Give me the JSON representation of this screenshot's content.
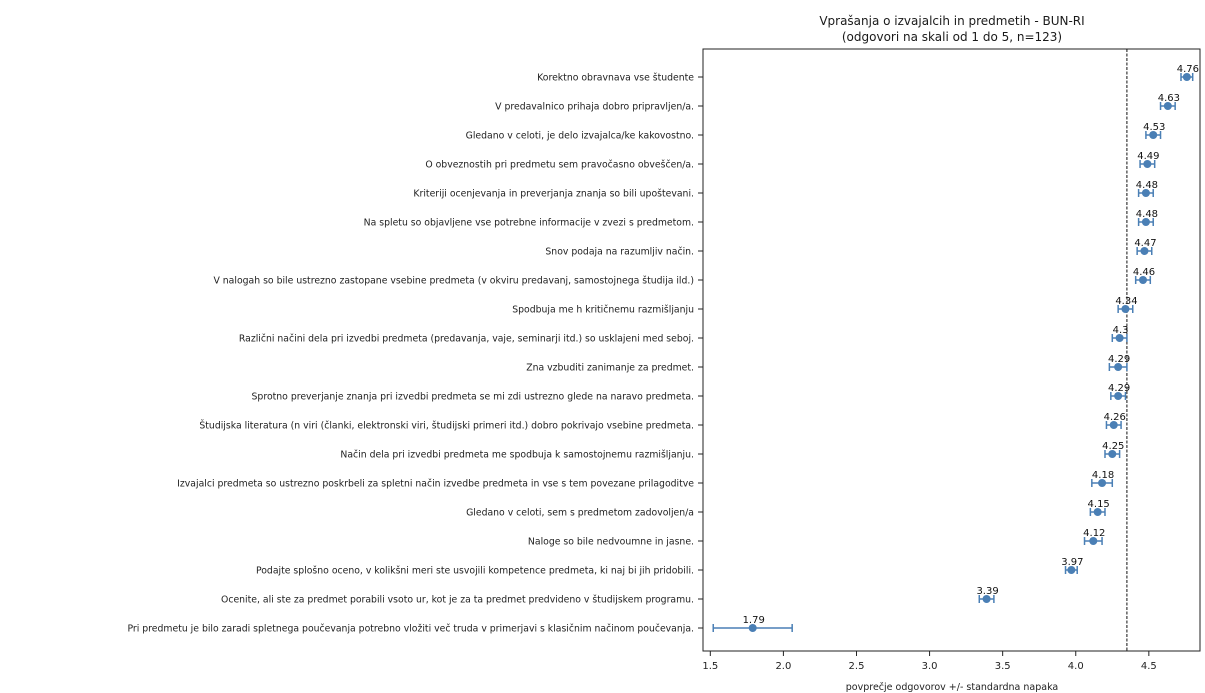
{
  "chart_data": {
    "type": "scatter",
    "title": "Vprašanja o izvajalcih in predmetih - BUN-RI",
    "subtitle": "(odgovori na skali od 1 do 5, n=123)",
    "xlabel": "povprečje odgovorov +/- standardna napaka",
    "xlim": [
      1.45,
      4.85
    ],
    "xticks": [
      "1.5",
      "2.0",
      "2.5",
      "3.0",
      "3.5",
      "4.0",
      "4.5"
    ],
    "xtick_values": [
      1.5,
      2.0,
      2.5,
      3.0,
      3.5,
      4.0,
      4.5
    ],
    "reference_line": 4.35,
    "marker_color": "#4a7fb5",
    "items": [
      {
        "label": "Korektno obravnava vse študente",
        "mean": 4.76,
        "value_label": "4.76",
        "err": 0.04
      },
      {
        "label": "V predavalnico prihaja dobro pripravljen/a.",
        "mean": 4.63,
        "value_label": "4.63",
        "err": 0.05
      },
      {
        "label": "Gledano v celoti, je delo izvajalca/ke kakovostno.",
        "mean": 4.53,
        "value_label": "4.53",
        "err": 0.05
      },
      {
        "label": "O obveznostih pri predmetu sem pravočasno obveščen/a.",
        "mean": 4.49,
        "value_label": "4.49",
        "err": 0.05
      },
      {
        "label": "Kriteriji ocenjevanja in preverjanja znanja so bili upoštevani.",
        "mean": 4.48,
        "value_label": "4.48",
        "err": 0.05
      },
      {
        "label": "Na spletu so objavljene vse potrebne informacije v zvezi s predmetom.",
        "mean": 4.48,
        "value_label": "4.48",
        "err": 0.05
      },
      {
        "label": "Snov podaja na razumljiv način.",
        "mean": 4.47,
        "value_label": "4.47",
        "err": 0.05
      },
      {
        "label": "V nalogah so bile ustrezno zastopane vsebine predmeta (v okviru predavanj, samostojnega študija ild.)",
        "mean": 4.46,
        "value_label": "4.46",
        "err": 0.05
      },
      {
        "label": "Spodbuja me h kritičnemu razmišljanju",
        "mean": 4.34,
        "value_label": "4.34",
        "err": 0.05
      },
      {
        "label": "Različni načini dela pri izvedbi predmeta (predavanja, vaje, seminarji itd.) so usklajeni med seboj.",
        "mean": 4.3,
        "value_label": "4.3",
        "err": 0.05
      },
      {
        "label": "Zna vzbuditi zanimanje za predmet.",
        "mean": 4.29,
        "value_label": "4.29",
        "err": 0.06
      },
      {
        "label": "Sprotno preverjanje znanja pri izvedbi predmeta se mi zdi ustrezno glede na naravo predmeta.",
        "mean": 4.29,
        "value_label": "4.29",
        "err": 0.05
      },
      {
        "label": "Študijska literatura (n viri (članki, elektronski viri, študijski primeri itd.) dobro pokrivajo vsebine predmeta.",
        "mean": 4.26,
        "value_label": "4.26",
        "err": 0.05
      },
      {
        "label": "Način dela pri izvedbi predmeta me spodbuja k samostojnemu razmišljanju.",
        "mean": 4.25,
        "value_label": "4.25",
        "err": 0.05
      },
      {
        "label": "Izvajalci predmeta so ustrezno poskrbeli za spletni način izvedbe predmeta in vse s tem povezane prilagoditve",
        "mean": 4.18,
        "value_label": "4.18",
        "err": 0.07
      },
      {
        "label": "Gledano v celoti, sem s predmetom zadovoljen/a",
        "mean": 4.15,
        "value_label": "4.15",
        "err": 0.05
      },
      {
        "label": "Naloge so bile nedvoumne in jasne.",
        "mean": 4.12,
        "value_label": "4.12",
        "err": 0.06
      },
      {
        "label": "Podajte splošno oceno, v kolikšni meri ste usvojili kompetence predmeta, ki naj bi jih pridobili.",
        "mean": 3.97,
        "value_label": "3.97",
        "err": 0.04
      },
      {
        "label": "Ocenite, ali ste za predmet porabili vsoto ur, kot je za ta predmet predvideno v študijskem programu.",
        "mean": 3.39,
        "value_label": "3.39",
        "err": 0.05
      },
      {
        "label": "Pri predmetu je bilo zaradi spletnega poučevanja potrebno vložiti več truda v primerjavi s klasičnim načinom poučevanja.",
        "mean": 1.79,
        "value_label": "1.79",
        "err": 0.27
      }
    ]
  }
}
